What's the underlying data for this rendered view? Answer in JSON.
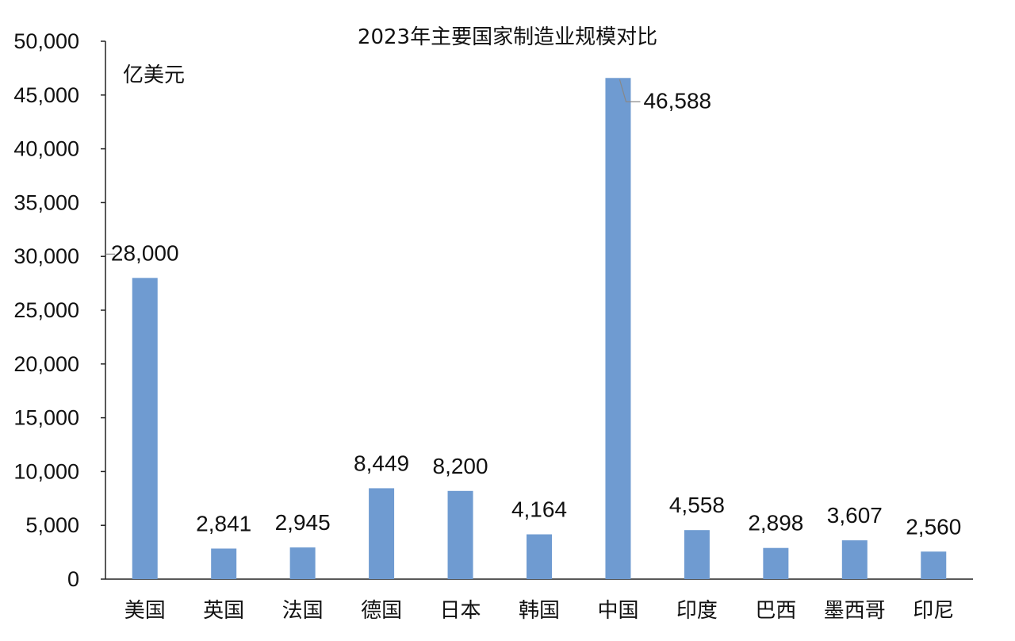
{
  "chart_data": {
    "type": "bar",
    "title": "2023年主要国家制造业规模对比",
    "unit_label": "亿美元",
    "xlabel": "",
    "ylabel": "",
    "ylim": [
      0,
      50000
    ],
    "y_ticks": [
      0,
      5000,
      10000,
      15000,
      20000,
      25000,
      30000,
      35000,
      40000,
      45000,
      50000
    ],
    "y_tick_labels": [
      "0",
      "5,000",
      "10,000",
      "15,000",
      "20,000",
      "25,000",
      "30,000",
      "35,000",
      "40,000",
      "45,000",
      "50,000"
    ],
    "categories": [
      "美国",
      "英国",
      "法国",
      "德国",
      "日本",
      "韩国",
      "中国",
      "印度",
      "巴西",
      "墨西哥",
      "印尼"
    ],
    "values": [
      28000,
      2841,
      2945,
      8449,
      8200,
      4164,
      46588,
      4558,
      2898,
      3607,
      2560
    ],
    "data_labels": [
      "28,000",
      "2,841",
      "2,945",
      "8,449",
      "8,200",
      "4,164",
      "46,588",
      "4,558",
      "2,898",
      "3,607",
      "2,560"
    ],
    "bar_color": "#6f9bd1",
    "grid": false,
    "legend": "none"
  }
}
